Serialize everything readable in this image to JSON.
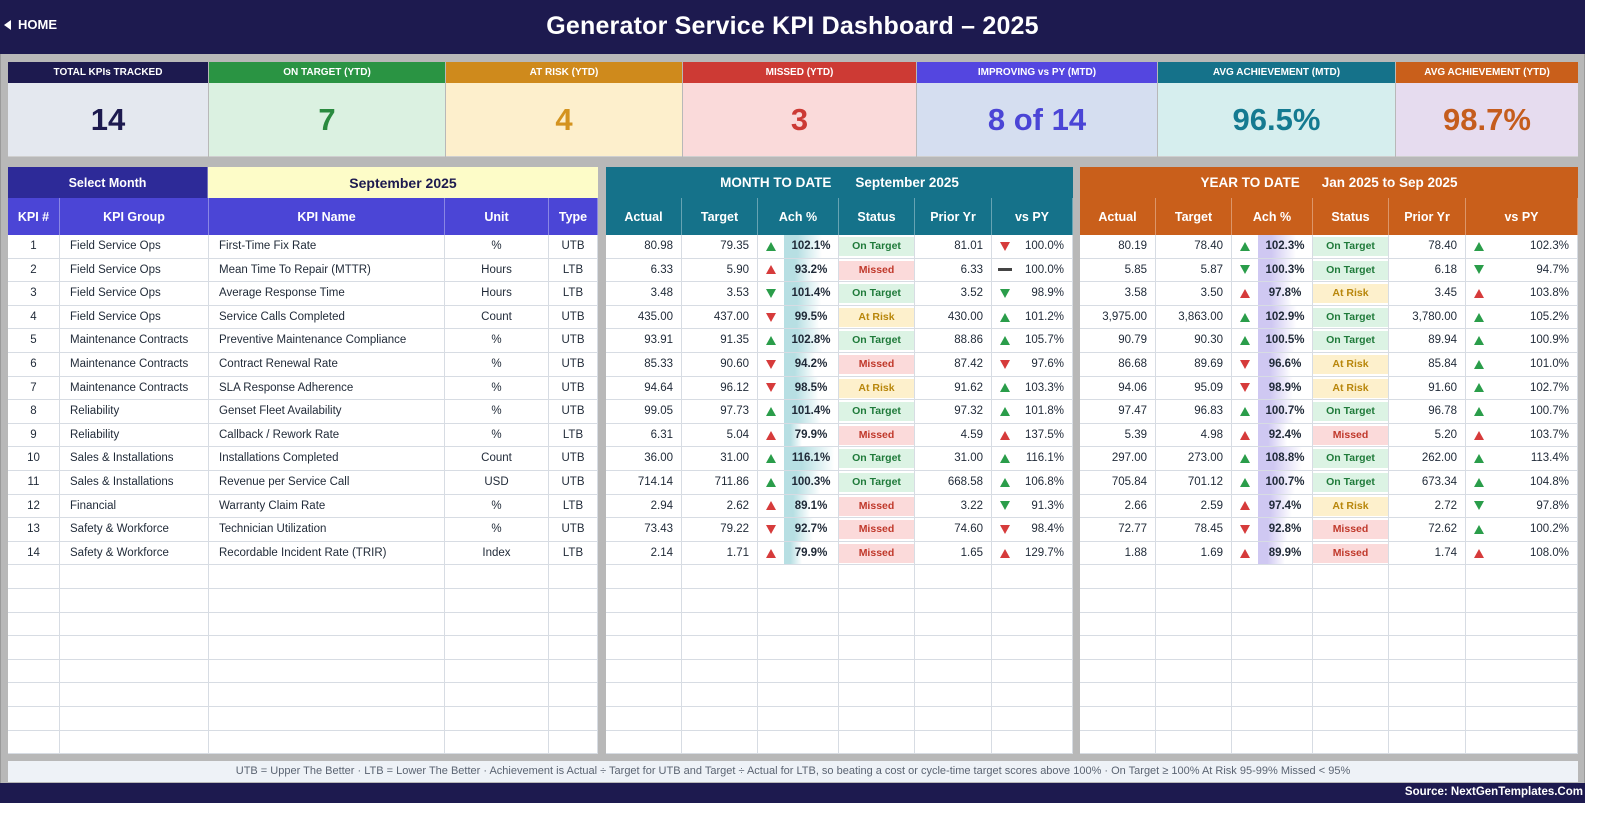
{
  "header": {
    "home_label": "HOME",
    "title": "Generator Service KPI Dashboard   –   2025"
  },
  "cards": [
    {
      "label": "TOTAL KPIs TRACKED",
      "value": "14",
      "head_color": "#1d1a4f",
      "bg": "#e4e8ef",
      "fg": "#1d1a4f"
    },
    {
      "label": "ON TARGET (YTD)",
      "value": "7",
      "head_color": "#2a9443",
      "bg": "#dbf1e1",
      "fg": "#2a8a3f"
    },
    {
      "label": "AT RISK (YTD)",
      "value": "4",
      "head_color": "#cf8a1c",
      "bg": "#fdefcc",
      "fg": "#d4931f"
    },
    {
      "label": "MISSED (YTD)",
      "value": "3",
      "head_color": "#cd3a34",
      "bg": "#fadada",
      "fg": "#cc3a35"
    },
    {
      "label": "IMPROVING vs PY (MTD)",
      "value": "8 of 14",
      "head_color": "#5446e0",
      "bg": "#d5def0",
      "fg": "#4b45d6"
    },
    {
      "label": "AVG ACHIEVEMENT (MTD)",
      "value": "96.5%",
      "head_color": "#15728a",
      "bg": "#d6eeee",
      "fg": "#147a91"
    },
    {
      "label": "AVG ACHIEVEMENT (YTD)",
      "value": "98.7%",
      "head_color": "#c95f1b",
      "bg": "#e6dcef",
      "fg": "#c55d1d"
    }
  ],
  "left": {
    "select_month_label": "Select Month",
    "selected_month": "September 2025",
    "headers": [
      "KPI #",
      "KPI Group",
      "KPI Name",
      "Unit",
      "Type"
    ]
  },
  "mtd": {
    "title": "MONTH TO DATE",
    "period": "September 2025",
    "headers": [
      "Actual",
      "Target",
      "Ach %",
      "Status",
      "Prior Yr",
      "vs PY"
    ]
  },
  "ytd": {
    "title": "YEAR TO DATE",
    "period": "Jan 2025  to  Sep 2025",
    "headers": [
      "Actual",
      "Target",
      "Ach %",
      "Status",
      "Prior Yr",
      "vs PY"
    ]
  },
  "kpis": [
    {
      "n": "1",
      "group": "Field Service Ops",
      "name": "First-Time Fix Rate",
      "unit": "%",
      "type": "UTB",
      "m": {
        "actual": "80.98",
        "target": "79.35",
        "arrow": "up",
        "ach": "102.1%",
        "status": "On Target",
        "prior": "81.01",
        "pyarrow": "down-red",
        "vspy": "100.0%"
      },
      "y": {
        "actual": "80.19",
        "target": "78.40",
        "arrow": "up",
        "ach": "102.3%",
        "status": "On Target",
        "prior": "78.40",
        "pyarrow": "up",
        "vspy": "102.3%"
      }
    },
    {
      "n": "2",
      "group": "Field Service Ops",
      "name": "Mean Time To Repair (MTTR)",
      "unit": "Hours",
      "type": "LTB",
      "m": {
        "actual": "6.33",
        "target": "5.90",
        "arrow": "up-red",
        "ach": "93.2%",
        "status": "Missed",
        "prior": "6.33",
        "pyarrow": "flat",
        "vspy": "100.0%"
      },
      "y": {
        "actual": "5.85",
        "target": "5.87",
        "arrow": "down-green",
        "ach": "100.3%",
        "status": "On Target",
        "prior": "6.18",
        "pyarrow": "down-green",
        "vspy": "94.7%"
      }
    },
    {
      "n": "3",
      "group": "Field Service Ops",
      "name": "Average Response Time",
      "unit": "Hours",
      "type": "LTB",
      "m": {
        "actual": "3.48",
        "target": "3.53",
        "arrow": "down-green",
        "ach": "101.4%",
        "status": "On Target",
        "prior": "3.52",
        "pyarrow": "down-green",
        "vspy": "98.9%"
      },
      "y": {
        "actual": "3.58",
        "target": "3.50",
        "arrow": "up-red",
        "ach": "97.8%",
        "status": "At Risk",
        "prior": "3.45",
        "pyarrow": "up-red",
        "vspy": "103.8%"
      }
    },
    {
      "n": "4",
      "group": "Field Service Ops",
      "name": "Service Calls Completed",
      "unit": "Count",
      "type": "UTB",
      "m": {
        "actual": "435.00",
        "target": "437.00",
        "arrow": "down-red",
        "ach": "99.5%",
        "status": "At Risk",
        "prior": "430.00",
        "pyarrow": "up",
        "vspy": "101.2%"
      },
      "y": {
        "actual": "3,975.00",
        "target": "3,863.00",
        "arrow": "up",
        "ach": "102.9%",
        "status": "On Target",
        "prior": "3,780.00",
        "pyarrow": "up",
        "vspy": "105.2%"
      }
    },
    {
      "n": "5",
      "group": "Maintenance Contracts",
      "name": "Preventive Maintenance Compliance",
      "unit": "%",
      "type": "UTB",
      "m": {
        "actual": "93.91",
        "target": "91.35",
        "arrow": "up",
        "ach": "102.8%",
        "status": "On Target",
        "prior": "88.86",
        "pyarrow": "up",
        "vspy": "105.7%"
      },
      "y": {
        "actual": "90.79",
        "target": "90.30",
        "arrow": "up",
        "ach": "100.5%",
        "status": "On Target",
        "prior": "89.94",
        "pyarrow": "up",
        "vspy": "100.9%"
      }
    },
    {
      "n": "6",
      "group": "Maintenance Contracts",
      "name": "Contract Renewal Rate",
      "unit": "%",
      "type": "UTB",
      "m": {
        "actual": "85.33",
        "target": "90.60",
        "arrow": "down-red",
        "ach": "94.2%",
        "status": "Missed",
        "prior": "87.42",
        "pyarrow": "down-red",
        "vspy": "97.6%"
      },
      "y": {
        "actual": "86.68",
        "target": "89.69",
        "arrow": "down-red",
        "ach": "96.6%",
        "status": "At Risk",
        "prior": "85.84",
        "pyarrow": "up",
        "vspy": "101.0%"
      }
    },
    {
      "n": "7",
      "group": "Maintenance Contracts",
      "name": "SLA Response Adherence",
      "unit": "%",
      "type": "UTB",
      "m": {
        "actual": "94.64",
        "target": "96.12",
        "arrow": "down-red",
        "ach": "98.5%",
        "status": "At Risk",
        "prior": "91.62",
        "pyarrow": "up",
        "vspy": "103.3%"
      },
      "y": {
        "actual": "94.06",
        "target": "95.09",
        "arrow": "down-red",
        "ach": "98.9%",
        "status": "At Risk",
        "prior": "91.60",
        "pyarrow": "up",
        "vspy": "102.7%"
      }
    },
    {
      "n": "8",
      "group": "Reliability",
      "name": "Genset Fleet Availability",
      "unit": "%",
      "type": "UTB",
      "m": {
        "actual": "99.05",
        "target": "97.73",
        "arrow": "up",
        "ach": "101.4%",
        "status": "On Target",
        "prior": "97.32",
        "pyarrow": "up",
        "vspy": "101.8%"
      },
      "y": {
        "actual": "97.47",
        "target": "96.83",
        "arrow": "up",
        "ach": "100.7%",
        "status": "On Target",
        "prior": "96.78",
        "pyarrow": "up",
        "vspy": "100.7%"
      }
    },
    {
      "n": "9",
      "group": "Reliability",
      "name": "Callback / Rework Rate",
      "unit": "%",
      "type": "LTB",
      "m": {
        "actual": "6.31",
        "target": "5.04",
        "arrow": "up-red",
        "ach": "79.9%",
        "status": "Missed",
        "prior": "4.59",
        "pyarrow": "up-red",
        "vspy": "137.5%"
      },
      "y": {
        "actual": "5.39",
        "target": "4.98",
        "arrow": "up-red",
        "ach": "92.4%",
        "status": "Missed",
        "prior": "5.20",
        "pyarrow": "up-red",
        "vspy": "103.7%"
      }
    },
    {
      "n": "10",
      "group": "Sales & Installations",
      "name": "Installations Completed",
      "unit": "Count",
      "type": "UTB",
      "m": {
        "actual": "36.00",
        "target": "31.00",
        "arrow": "up",
        "ach": "116.1%",
        "status": "On Target",
        "prior": "31.00",
        "pyarrow": "up",
        "vspy": "116.1%"
      },
      "y": {
        "actual": "297.00",
        "target": "273.00",
        "arrow": "up",
        "ach": "108.8%",
        "status": "On Target",
        "prior": "262.00",
        "pyarrow": "up",
        "vspy": "113.4%"
      }
    },
    {
      "n": "11",
      "group": "Sales & Installations",
      "name": "Revenue per Service Call",
      "unit": "USD",
      "type": "UTB",
      "m": {
        "actual": "714.14",
        "target": "711.86",
        "arrow": "up",
        "ach": "100.3%",
        "status": "On Target",
        "prior": "668.58",
        "pyarrow": "up",
        "vspy": "106.8%"
      },
      "y": {
        "actual": "705.84",
        "target": "701.12",
        "arrow": "up",
        "ach": "100.7%",
        "status": "On Target",
        "prior": "673.34",
        "pyarrow": "up",
        "vspy": "104.8%"
      }
    },
    {
      "n": "12",
      "group": "Financial",
      "name": "Warranty Claim Rate",
      "unit": "%",
      "type": "LTB",
      "m": {
        "actual": "2.94",
        "target": "2.62",
        "arrow": "up-red",
        "ach": "89.1%",
        "status": "Missed",
        "prior": "3.22",
        "pyarrow": "down-green",
        "vspy": "91.3%"
      },
      "y": {
        "actual": "2.66",
        "target": "2.59",
        "arrow": "up-red",
        "ach": "97.4%",
        "status": "At Risk",
        "prior": "2.72",
        "pyarrow": "down-green",
        "vspy": "97.8%"
      }
    },
    {
      "n": "13",
      "group": "Safety & Workforce",
      "name": "Technician Utilization",
      "unit": "%",
      "type": "UTB",
      "m": {
        "actual": "73.43",
        "target": "79.22",
        "arrow": "down-red",
        "ach": "92.7%",
        "status": "Missed",
        "prior": "74.60",
        "pyarrow": "down-red",
        "vspy": "98.4%"
      },
      "y": {
        "actual": "72.77",
        "target": "78.45",
        "arrow": "down-red",
        "ach": "92.8%",
        "status": "Missed",
        "prior": "72.62",
        "pyarrow": "up",
        "vspy": "100.2%"
      }
    },
    {
      "n": "14",
      "group": "Safety & Workforce",
      "name": "Recordable Incident Rate (TRIR)",
      "unit": "Index",
      "type": "LTB",
      "m": {
        "actual": "2.14",
        "target": "1.71",
        "arrow": "up-red",
        "ach": "79.9%",
        "status": "Missed",
        "prior": "1.65",
        "pyarrow": "up-red",
        "vspy": "129.7%"
      },
      "y": {
        "actual": "1.88",
        "target": "1.69",
        "arrow": "up-red",
        "ach": "89.9%",
        "status": "Missed",
        "prior": "1.74",
        "pyarrow": "up-red",
        "vspy": "108.0%"
      }
    }
  ],
  "footnote": "UTB = Upper The Better   ·   LTB = Lower The Better   ·   Achievement is Actual ÷ Target for UTB and Target ÷ Actual for LTB, so beating a cost or cycle-time target scores above 100%   ·   On Target ≥ 100%    At Risk 95-99%    Missed < 95%",
  "source": "Source: NextGenTemplates.Com",
  "colors": {
    "navy": "#1d1a4f",
    "purple": "#5446e0",
    "teal": "#15728a",
    "orange": "#c95f1b",
    "yellow_sel": "#fdfcc8"
  }
}
